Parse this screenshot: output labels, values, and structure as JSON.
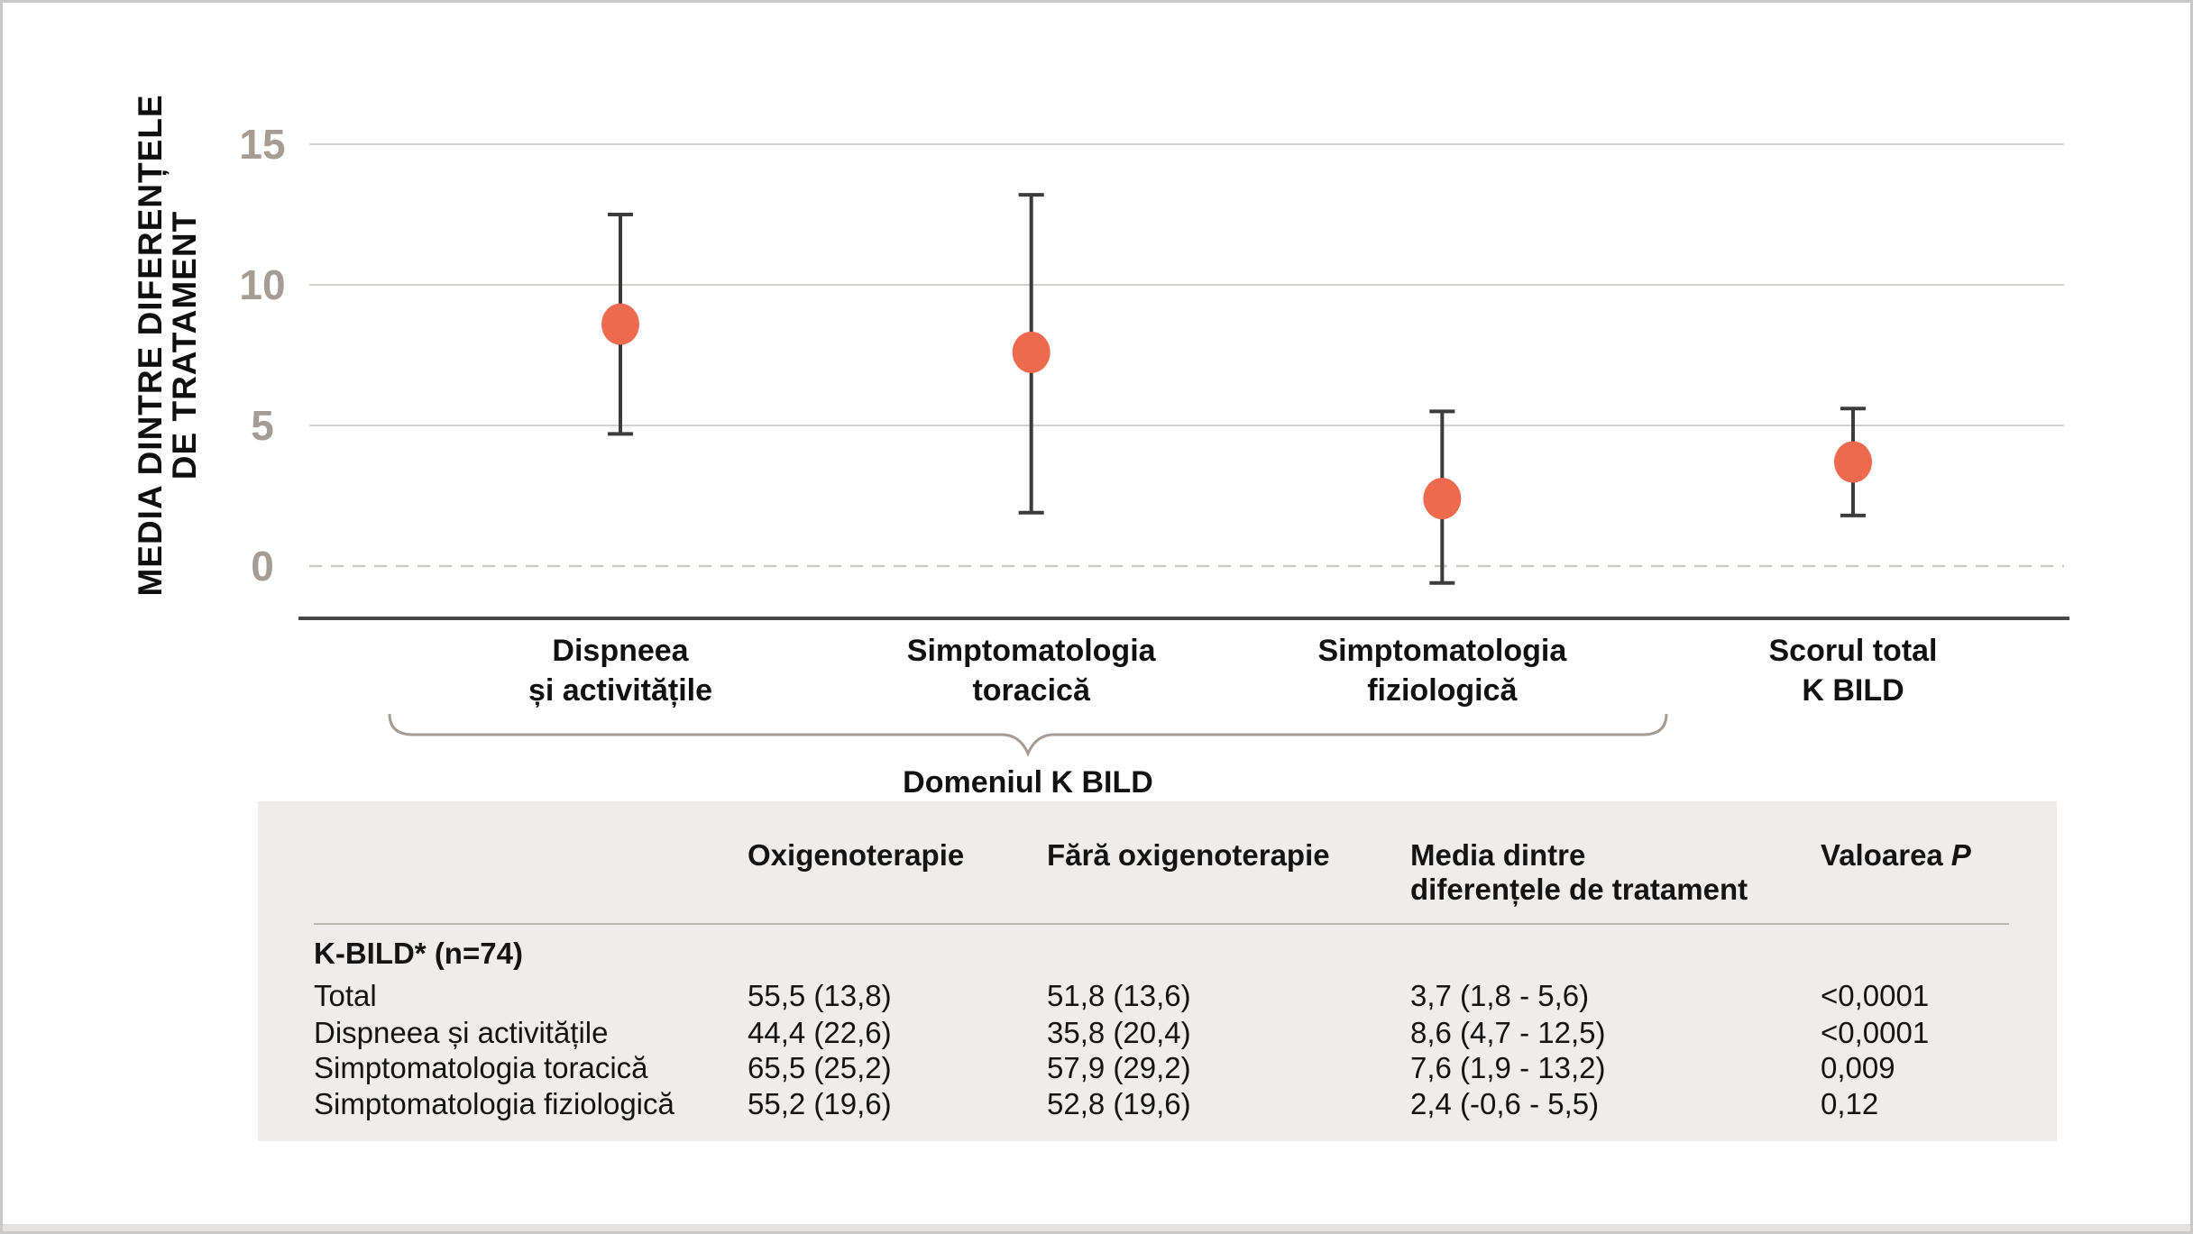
{
  "colors": {
    "marker": "#ED6A4E",
    "error_bar": "#3C3C3C",
    "axis_line": "#474747",
    "gridline": "#D5D2CE",
    "zero_line": "#CCC9C5",
    "tick_label": "#A59C94",
    "brace": "#A59C94",
    "table_bg": "#EFEDEC",
    "text": "#111111"
  },
  "chart_data": {
    "type": "scatter",
    "subtype": "point-estimates-with-error-bars",
    "title": "",
    "ylabel": "MEDIA DINTRE DIFERENȚELE DE TRATAMENT",
    "ylabel_lines": [
      "MEDIA DINTRE DIFERENȚELE",
      "DE TRATAMENT"
    ],
    "xlabel": "",
    "ylim": [
      -2.7,
      16.4
    ],
    "yticks": [
      15,
      10,
      5,
      0
    ],
    "grid": "horizontal solid gridlines at 5, 10, 15; dashed reference line at 0",
    "legend_position": "none",
    "categories": [
      {
        "line1": "Dispneea",
        "line2": "și activitățile"
      },
      {
        "line1": "Simptomatologia",
        "line2": "toracică"
      },
      {
        "line1": "Simptomatologia",
        "line2": "fiziologică"
      },
      {
        "line1": "Scorul total",
        "line2": "K BILD"
      }
    ],
    "series": [
      {
        "name": "Media dintre diferențele de tratament",
        "means": [
          8.6,
          7.6,
          2.4,
          3.7
        ],
        "ci_low": [
          4.7,
          1.9,
          -0.6,
          1.8
        ],
        "ci_high": [
          12.5,
          13.2,
          5.5,
          5.6
        ]
      }
    ],
    "annotation": {
      "label": "Domeniul K BILD",
      "spans_categories": [
        0,
        1,
        2
      ]
    }
  },
  "table": {
    "headers": {
      "treatment": "Oxigenoterapie",
      "control": "Fără oxigenoterapie",
      "difference_line1": "Media dintre",
      "difference_line2": "diferențele de tratament",
      "p_prefix": "Valoarea",
      "p_symbol": "P"
    },
    "section_label": "K-BILD* (n=74)",
    "rows": [
      {
        "label": "Total",
        "oxigenoterapie": "55,5 (13,8)",
        "fara_oxigenoterapie": "51,8 (13,6)",
        "media_diferentelor": "3,7 (1,8 - 5,6)",
        "valoarea_p": "<0,0001"
      },
      {
        "label": "Dispneea și activitățile",
        "oxigenoterapie": "44,4 (22,6)",
        "fara_oxigenoterapie": "35,8 (20,4)",
        "media_diferentelor": "8,6 (4,7 - 12,5)",
        "valoarea_p": "<0,0001"
      },
      {
        "label": "Simptomatologia toracică",
        "oxigenoterapie": "65,5 (25,2)",
        "fara_oxigenoterapie": "57,9 (29,2)",
        "media_diferentelor": "7,6 (1,9 - 13,2)",
        "valoarea_p": "0,009"
      },
      {
        "label": "Simptomatologia fiziologică",
        "oxigenoterapie": "55,2 (19,6)",
        "fara_oxigenoterapie": "52,8 (19,6)",
        "media_diferentelor": "2,4 (-0,6 - 5,5)",
        "valoarea_p": "0,12"
      }
    ]
  }
}
